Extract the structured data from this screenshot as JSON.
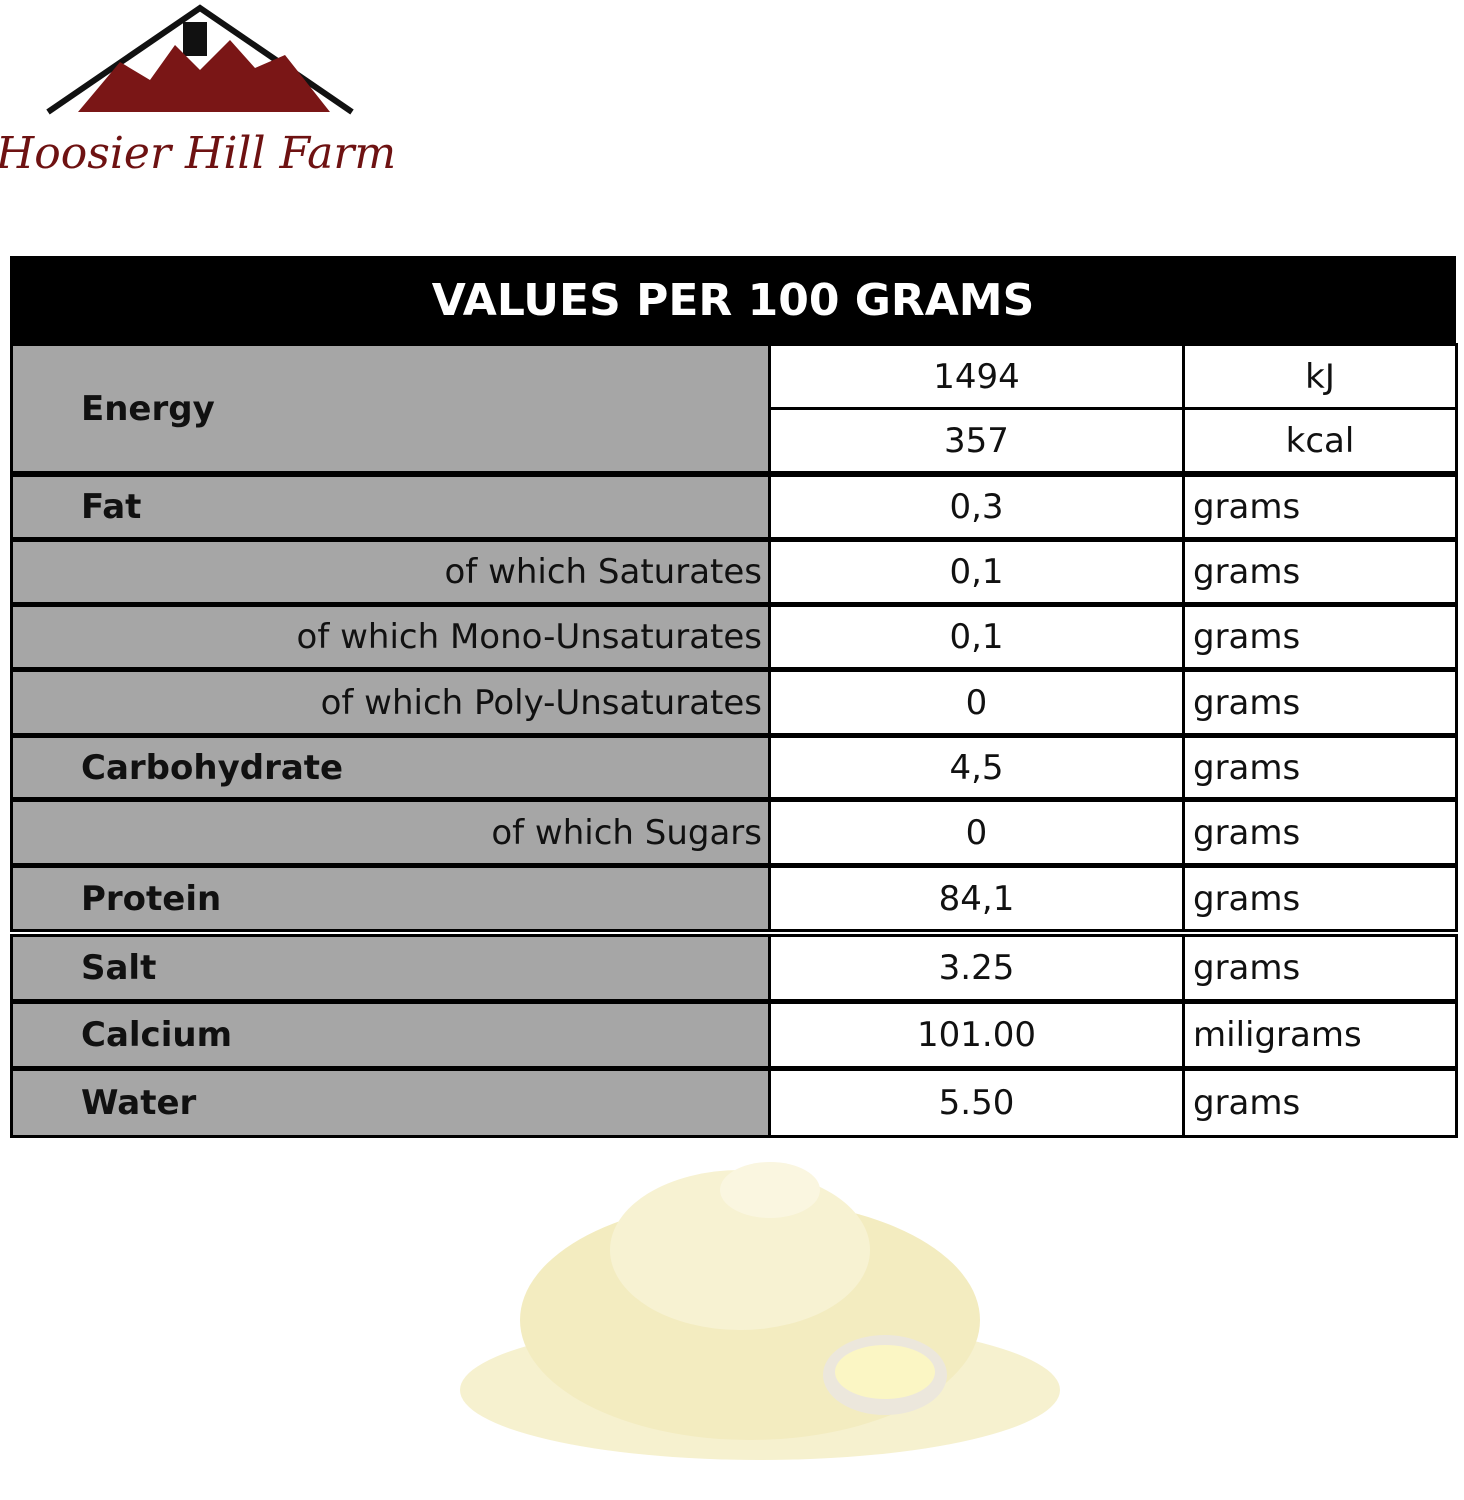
{
  "header": {
    "brand": "Hoosier Hill Farm"
  },
  "table": {
    "title": "VALUES PER 100 GRAMS",
    "energy": {
      "label": "Energy",
      "entries": [
        {
          "value": "1494",
          "unit": "kJ"
        },
        {
          "value": "357",
          "unit": "kcal"
        }
      ]
    },
    "rows": [
      {
        "label": "Fat",
        "value": "0,3",
        "unit": "grams"
      },
      {
        "label": "of which Saturates",
        "value": "0,1",
        "unit": "grams"
      },
      {
        "label": "of which Mono-Unsaturates",
        "value": "0,1",
        "unit": "grams"
      },
      {
        "label": "of which Poly-Unsaturates",
        "value": "0",
        "unit": "grams"
      },
      {
        "label": "Carbohydrate",
        "value": "4,5",
        "unit": "grams"
      },
      {
        "label": "of which Sugars",
        "value": "0",
        "unit": "grams"
      },
      {
        "label": "Protein",
        "value": "84,1",
        "unit": "grams"
      },
      {
        "label": "Salt",
        "value": "3.25",
        "unit": "grams"
      },
      {
        "label": "Calcium",
        "value": "101.00",
        "unit": "miligrams"
      },
      {
        "label": "Water",
        "value": "5.50",
        "unit": "grams"
      }
    ]
  }
}
